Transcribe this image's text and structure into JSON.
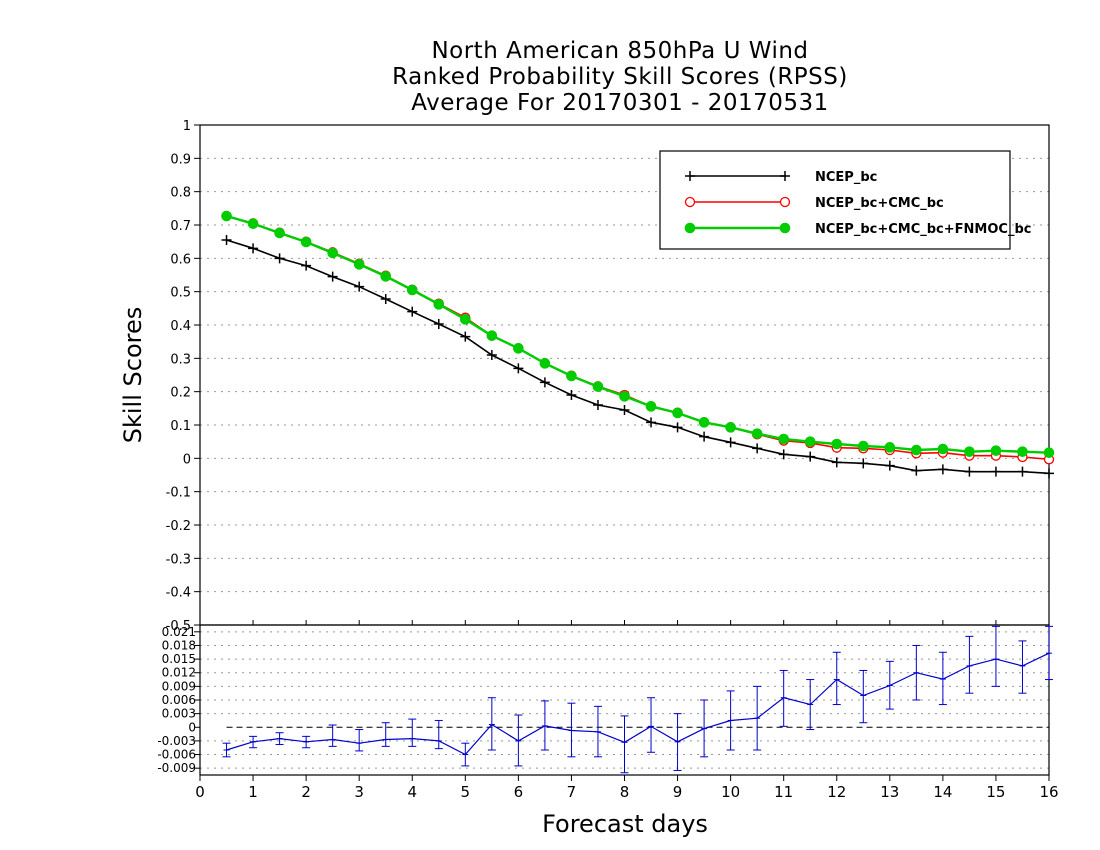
{
  "chart_data": [
    {
      "type": "line",
      "title_lines": [
        "North American 850hPa U Wind",
        "Ranked Probability Skill Scores (RPSS)",
        "Average For 20170301 - 20170531"
      ],
      "ylabel": "Skill Scores",
      "xlabel": "Forecast days",
      "xlim": [
        0,
        16
      ],
      "ylim": [
        -0.5,
        1
      ],
      "yticks": [
        "1",
        "0.9",
        "0.8",
        "0.7",
        "0.6",
        "0.5",
        "0.4",
        "0.3",
        "0.2",
        "0.1",
        "0",
        "-0.1",
        "-0.2",
        "-0.3",
        "-0.4",
        "-0.5"
      ],
      "grid": true,
      "legend_position": "top-right",
      "x": [
        0.5,
        1.0,
        1.5,
        2.0,
        2.5,
        3.0,
        3.5,
        4.0,
        4.5,
        5.0,
        5.5,
        6.0,
        6.5,
        7.0,
        7.5,
        8.0,
        8.5,
        9.0,
        9.5,
        10.0,
        10.5,
        11.0,
        11.5,
        12.0,
        12.5,
        13.0,
        13.5,
        14.0,
        14.5,
        15.0,
        15.5,
        16.0
      ],
      "series": [
        {
          "name": "NCEP_bc",
          "color": "#000000",
          "marker": "plus",
          "values": [
            0.655,
            0.63,
            0.6,
            0.578,
            0.545,
            0.515,
            0.478,
            0.44,
            0.403,
            0.365,
            0.31,
            0.27,
            0.228,
            0.19,
            0.16,
            0.145,
            0.108,
            0.093,
            0.065,
            0.048,
            0.03,
            0.012,
            0.005,
            -0.012,
            -0.015,
            -0.022,
            -0.037,
            -0.033,
            -0.04,
            -0.04,
            -0.04,
            -0.045
          ]
        },
        {
          "name": "NCEP_bc+CMC_bc",
          "color": "#ff0000",
          "marker": "open-circle",
          "values": [
            0.727,
            0.705,
            0.677,
            0.65,
            0.618,
            0.584,
            0.548,
            0.506,
            0.464,
            0.422,
            0.368,
            0.33,
            0.285,
            0.248,
            0.216,
            0.19,
            0.156,
            0.137,
            0.108,
            0.093,
            0.072,
            0.053,
            0.046,
            0.032,
            0.03,
            0.025,
            0.015,
            0.017,
            0.008,
            0.008,
            0.004,
            -0.003
          ]
        },
        {
          "name": "NCEP_bc+CMC_bc+FNMOC_bc",
          "color": "#00cc00",
          "marker": "filled-circle",
          "values": [
            0.727,
            0.704,
            0.676,
            0.649,
            0.616,
            0.582,
            0.546,
            0.505,
            0.462,
            0.417,
            0.368,
            0.33,
            0.285,
            0.247,
            0.215,
            0.186,
            0.156,
            0.136,
            0.108,
            0.093,
            0.074,
            0.058,
            0.05,
            0.043,
            0.037,
            0.033,
            0.025,
            0.028,
            0.02,
            0.023,
            0.02,
            0.017
          ]
        }
      ]
    },
    {
      "type": "line",
      "description": "difference panel with error bars",
      "xlim": [
        0,
        16
      ],
      "xticks": [
        "0",
        "1",
        "2",
        "3",
        "4",
        "5",
        "6",
        "7",
        "8",
        "9",
        "10",
        "11",
        "12",
        "13",
        "14",
        "15",
        "16"
      ],
      "ylim": [
        -0.0105,
        0.0225
      ],
      "yticks": [
        "0.021",
        "0.018",
        "0.015",
        "0.012",
        "0.009",
        "0.006",
        "0.003",
        "0",
        "-0.003",
        "-0.006",
        "-0.009"
      ],
      "series": [
        {
          "color": "#0000cc",
          "x": [
            0.5,
            1.0,
            1.5,
            2.0,
            2.5,
            3.0,
            3.5,
            4.0,
            4.5,
            5.0,
            5.5,
            6.0,
            6.5,
            7.0,
            7.5,
            8.0,
            8.5,
            9.0,
            9.5,
            10.0,
            10.5,
            11.0,
            11.5,
            12.0,
            12.5,
            13.0,
            13.5,
            14.0,
            14.5,
            15.0,
            15.5,
            16.0
          ],
          "values": [
            -0.005,
            -0.0032,
            -0.0025,
            -0.0032,
            -0.0027,
            -0.0035,
            -0.0027,
            -0.0025,
            -0.003,
            -0.006,
            0.0006,
            -0.003,
            0.0003,
            -0.0007,
            -0.001,
            -0.0033,
            0.0002,
            -0.0032,
            -0.0003,
            0.0015,
            0.002,
            0.0065,
            0.005,
            0.0105,
            0.007,
            0.0092,
            0.012,
            0.0106,
            0.0135,
            0.015,
            0.0135,
            0.0163
          ],
          "error_low": [
            -0.0065,
            -0.0045,
            -0.0038,
            -0.0045,
            -0.0042,
            -0.0052,
            -0.0042,
            -0.0042,
            -0.0047,
            -0.0085,
            -0.005,
            -0.0085,
            -0.005,
            -0.0065,
            -0.0065,
            -0.01,
            -0.0055,
            -0.0095,
            -0.0065,
            -0.005,
            -0.005,
            0.0002,
            -0.0005,
            0.005,
            0.001,
            0.004,
            0.006,
            0.005,
            0.0075,
            0.009,
            0.0075,
            0.0105
          ],
          "error_high": [
            -0.0035,
            -0.002,
            -0.0012,
            -0.002,
            0.0005,
            -0.0005,
            0.001,
            0.0018,
            0.0015,
            -0.0035,
            0.0065,
            0.0027,
            0.0058,
            0.0053,
            0.0046,
            0.0025,
            0.0065,
            0.003,
            0.006,
            0.008,
            0.009,
            0.0125,
            0.0105,
            0.0165,
            0.0125,
            0.0145,
            0.018,
            0.0165,
            0.02,
            0.0222,
            0.019,
            0.0222
          ]
        }
      ]
    }
  ]
}
